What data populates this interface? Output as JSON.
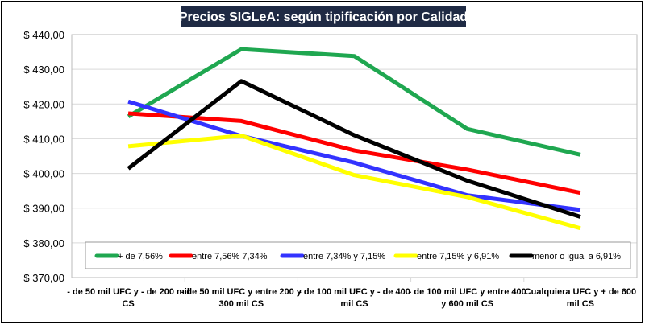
{
  "chart_data": {
    "type": "line",
    "title": "Precios SIGLeA: según tipificación por Calidad",
    "categories": [
      "- de 50 mil UFC y - de 200 mil CS",
      "- de 50 mil UFC y entre  200 y 300 mil CS",
      "- de 100 mil UFC y - de 400 mil CS",
      "- de 100 mil UFC y entre  400 y 600 mil CS",
      "Cualquiera UFC y + de 600 mil CS"
    ],
    "category_lines": [
      [
        "- de 50 mil UFC y - de 200 mil",
        "CS"
      ],
      [
        "- de 50 mil UFC y entre  200 y",
        "300 mil CS"
      ],
      [
        "- de 100 mil UFC y - de 400",
        "mil CS"
      ],
      [
        "- de 100 mil UFC y entre  400",
        "y 600 mil CS"
      ],
      [
        "Cualquiera UFC y + de 600",
        "mil CS"
      ]
    ],
    "ylim": [
      370,
      440
    ],
    "yticks": [
      "$ 370,00",
      "$ 380,00",
      "$ 390,00",
      "$ 400,00",
      "$ 410,00",
      "$ 420,00",
      "$ 430,00",
      "$ 440,00"
    ],
    "grid": true,
    "legend": "bottom-inside",
    "series": [
      {
        "name": "+ de 7,56%",
        "color": "#1fa750",
        "values": [
          416.4,
          435.8,
          433.8,
          412.8,
          405.4
        ]
      },
      {
        "name": "entre 7,56% 7,34%",
        "color": "#ff0000",
        "values": [
          417.3,
          415.1,
          406.6,
          401.1,
          394.4
        ]
      },
      {
        "name": "entre 7,34% y 7,15%",
        "color": "#3333ff",
        "values": [
          420.7,
          410.8,
          403.1,
          393.7,
          389.5
        ]
      },
      {
        "name": "entre 7,15% y 6,91%",
        "color": "#ffff00",
        "values": [
          407.8,
          410.9,
          399.5,
          393.2,
          384.2
        ]
      },
      {
        "name": "menor o igual a 6,91%",
        "color": "#000000",
        "values": [
          401.4,
          426.6,
          411.0,
          397.9,
          387.5
        ]
      }
    ]
  }
}
